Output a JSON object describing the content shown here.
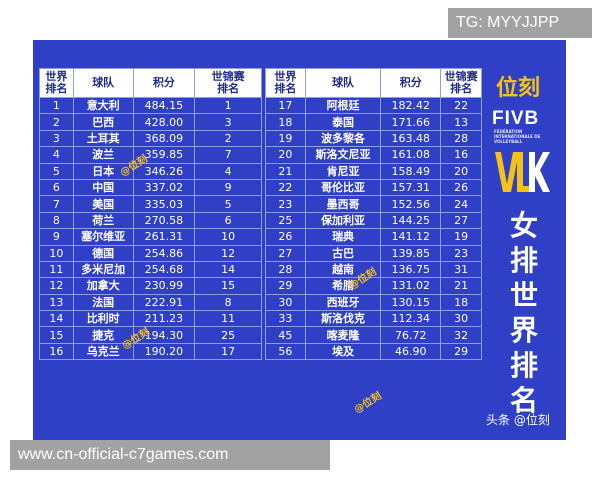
{
  "headers": {
    "rank": "世界\n排名",
    "team": "球队",
    "points": "积分",
    "champs_rank": "世锦赛\n排名"
  },
  "left_rows": [
    {
      "rank": "1",
      "team": "意大利",
      "points": "484.15",
      "champs": "1"
    },
    {
      "rank": "2",
      "team": "巴西",
      "points": "428.00",
      "champs": "3"
    },
    {
      "rank": "3",
      "team": "土耳其",
      "points": "368.09",
      "champs": "2"
    },
    {
      "rank": "4",
      "team": "波兰",
      "points": "359.85",
      "champs": "7"
    },
    {
      "rank": "5",
      "team": "日本",
      "points": "346.26",
      "champs": "4"
    },
    {
      "rank": "6",
      "team": "中国",
      "points": "337.02",
      "champs": "9"
    },
    {
      "rank": "7",
      "team": "美国",
      "points": "335.03",
      "champs": "5"
    },
    {
      "rank": "8",
      "team": "荷兰",
      "points": "270.58",
      "champs": "6"
    },
    {
      "rank": "9",
      "team": "塞尔维亚",
      "points": "261.31",
      "champs": "10"
    },
    {
      "rank": "10",
      "team": "德国",
      "points": "254.86",
      "champs": "12"
    },
    {
      "rank": "11",
      "team": "多米尼加",
      "points": "254.68",
      "champs": "14"
    },
    {
      "rank": "12",
      "team": "加拿大",
      "points": "230.99",
      "champs": "15"
    },
    {
      "rank": "13",
      "team": "法国",
      "points": "222.91",
      "champs": "8"
    },
    {
      "rank": "14",
      "team": "比利时",
      "points": "211.23",
      "champs": "11"
    },
    {
      "rank": "15",
      "team": "捷克",
      "points": "194.30",
      "champs": "25"
    },
    {
      "rank": "16",
      "team": "乌克兰",
      "points": "190.20",
      "champs": "17"
    }
  ],
  "right_rows": [
    {
      "rank": "17",
      "team": "阿根廷",
      "points": "182.42",
      "champs": "22"
    },
    {
      "rank": "18",
      "team": "泰国",
      "points": "171.66",
      "champs": "13"
    },
    {
      "rank": "19",
      "team": "波多黎各",
      "points": "163.48",
      "champs": "28"
    },
    {
      "rank": "20",
      "team": "斯洛文尼亚",
      "points": "161.08",
      "champs": "16"
    },
    {
      "rank": "21",
      "team": "肯尼亚",
      "points": "158.49",
      "champs": "20"
    },
    {
      "rank": "22",
      "team": "哥伦比亚",
      "points": "157.31",
      "champs": "26"
    },
    {
      "rank": "23",
      "team": "墨西哥",
      "points": "152.56",
      "champs": "24"
    },
    {
      "rank": "25",
      "team": "保加利亚",
      "points": "144.25",
      "champs": "27"
    },
    {
      "rank": "26",
      "team": "瑞典",
      "points": "141.12",
      "champs": "19"
    },
    {
      "rank": "27",
      "team": "古巴",
      "points": "139.85",
      "champs": "23"
    },
    {
      "rank": "28",
      "team": "越南",
      "points": "136.75",
      "champs": "31"
    },
    {
      "rank": "29",
      "team": "希腊",
      "points": "131.02",
      "champs": "21"
    },
    {
      "rank": "30",
      "team": "西班牙",
      "points": "130.15",
      "champs": "18"
    },
    {
      "rank": "33",
      "team": "斯洛伐克",
      "points": "112.34",
      "champs": "30"
    },
    {
      "rank": "45",
      "team": "喀麦隆",
      "points": "76.72",
      "champs": "32"
    },
    {
      "rank": "56",
      "team": "埃及",
      "points": "46.90",
      "champs": "29"
    }
  ],
  "brand_logo": "位刻",
  "fivb_logo": "FIVB",
  "fivb_subtext": "FÉDÉRATION INTERNATIONALE DE VOLLEYBALL",
  "side_title": [
    "女",
    "排",
    "世",
    "界",
    "排",
    "名"
  ],
  "watermark": "@位刻",
  "credit": "头条 @位刻",
  "tg_banner": "TG: MYYJJPP",
  "url_banner": "www.cn-official-c7games.com",
  "colors": {
    "panel": "#2f3fc6",
    "accent": "#f6c21a",
    "banner": "#a2a2a2"
  }
}
